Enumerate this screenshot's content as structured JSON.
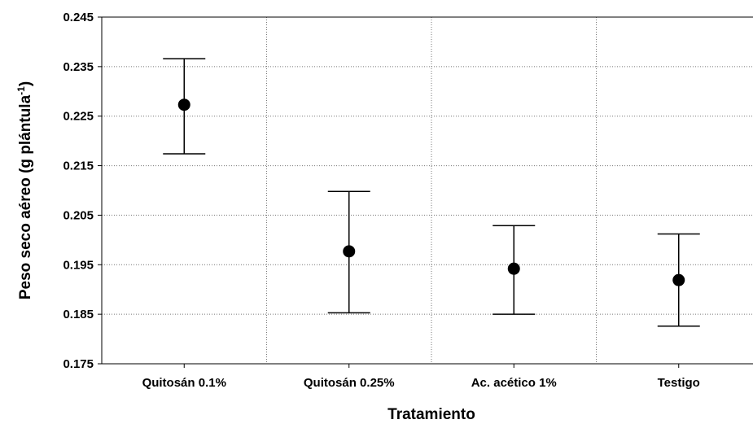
{
  "chart_data": {
    "type": "scatter",
    "title": "",
    "xlabel": "Tratamiento",
    "ylabel": {
      "main": "Peso seco aéreo (g plántula",
      "superscript": "-1",
      "close": ")"
    },
    "ylim": [
      0.175,
      0.245
    ],
    "yticks": [
      "0.175",
      "0.185",
      "0.195",
      "0.205",
      "0.215",
      "0.225",
      "0.235",
      "0.245"
    ],
    "grid": true,
    "categories": [
      "Quitosán 0.1%",
      "Quitosán 0.25%",
      "Ac. acético 1%",
      "Testigo"
    ],
    "series": [
      {
        "means": [
          0.2273,
          0.1977,
          0.1942,
          0.1919
        ],
        "lower": [
          0.2174,
          0.1853,
          0.185,
          0.1826
        ],
        "upper": [
          0.2366,
          0.2098,
          0.2029,
          0.2012
        ]
      }
    ]
  }
}
